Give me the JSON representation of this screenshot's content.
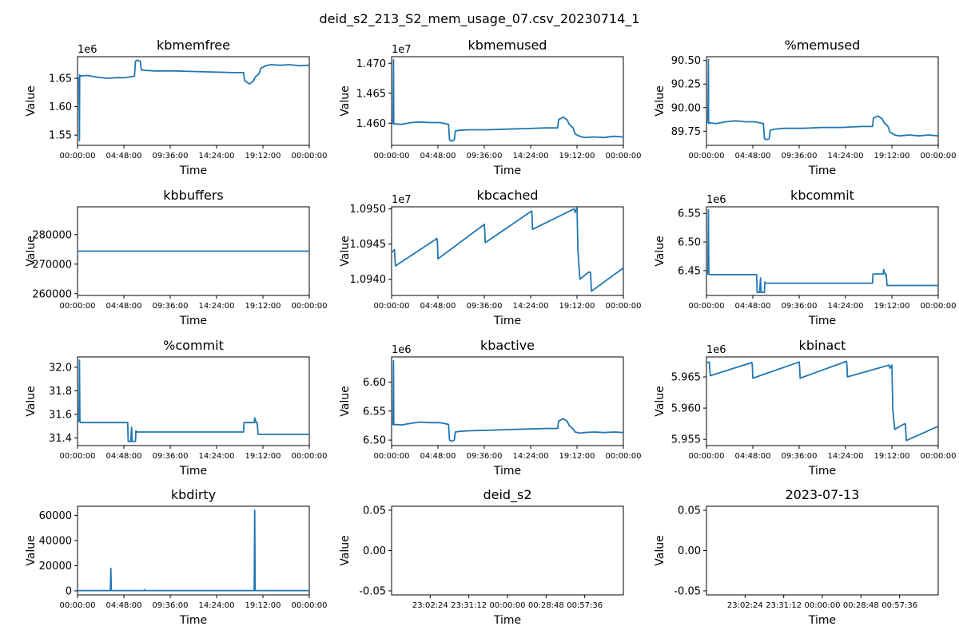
{
  "figure": {
    "suptitle": "deid_s2_213_S2_mem_usage_07.csv_20230714_1"
  },
  "chart_data": [
    {
      "type": "line",
      "title": "kbmemfree",
      "xlabel": "Time",
      "ylabel": "Value",
      "offset_text": "1e6",
      "xlim": [
        0,
        24
      ],
      "ylim": [
        1.532,
        1.688
      ],
      "yticks": [
        1.55,
        1.6,
        1.65
      ],
      "ytick_labels": [
        "1.55",
        "1.60",
        "1.65"
      ],
      "xticks": [
        0,
        4.8,
        9.6,
        14.4,
        19.2,
        24
      ],
      "xtick_labels": [
        "00:00:00",
        "04:48:00",
        "09:36:00",
        "14:24:00",
        "19:12:00",
        "00:00:00"
      ],
      "series": [
        {
          "x": [
            0,
            0.15,
            0.2,
            0.22,
            0.3,
            1,
            2,
            3,
            4,
            5,
            5.9,
            6.0,
            6.2,
            6.5,
            6.6,
            7,
            8,
            10,
            12,
            14,
            16,
            17.2,
            17.3,
            17.8,
            18.2,
            18.4,
            18.8,
            19.0,
            19.5,
            20,
            21,
            22,
            23,
            24
          ],
          "y": [
            1.652,
            1.65,
            1.54,
            1.656,
            1.654,
            1.655,
            1.652,
            1.65,
            1.651,
            1.651,
            1.654,
            1.68,
            1.682,
            1.68,
            1.665,
            1.664,
            1.663,
            1.663,
            1.662,
            1.661,
            1.66,
            1.66,
            1.646,
            1.64,
            1.645,
            1.652,
            1.658,
            1.668,
            1.672,
            1.674,
            1.673,
            1.674,
            1.672,
            1.673
          ]
        }
      ]
    },
    {
      "type": "line",
      "title": "kbmemused",
      "xlabel": "Time",
      "ylabel": "Value",
      "offset_text": "1e7",
      "xlim": [
        0,
        24
      ],
      "ylim": [
        1.4563,
        1.4711
      ],
      "yticks": [
        1.46,
        1.465,
        1.47
      ],
      "ytick_labels": [
        "1.460",
        "1.465",
        "1.470"
      ],
      "xticks": [
        0,
        4.8,
        9.6,
        14.4,
        19.2,
        24
      ],
      "xtick_labels": [
        "00:00:00",
        "04:48:00",
        "09:36:00",
        "14:24:00",
        "19:12:00",
        "00:00:00"
      ],
      "series": [
        {
          "x": [
            0,
            0.15,
            0.2,
            0.22,
            0.3,
            1,
            2,
            3,
            4,
            5,
            5.9,
            6.0,
            6.2,
            6.5,
            6.6,
            7,
            8,
            10,
            12,
            14,
            16,
            17.2,
            17.3,
            17.8,
            18.2,
            18.4,
            18.8,
            19.0,
            19.5,
            20,
            21,
            22,
            23,
            24
          ],
          "y": [
            1.46,
            1.4601,
            1.4706,
            1.4598,
            1.4599,
            1.4598,
            1.4601,
            1.4602,
            1.4601,
            1.4601,
            1.4598,
            1.4572,
            1.457,
            1.4572,
            1.4587,
            1.4588,
            1.4589,
            1.4589,
            1.459,
            1.4591,
            1.4592,
            1.4592,
            1.4606,
            1.461,
            1.4605,
            1.4598,
            1.4592,
            1.4582,
            1.4578,
            1.4576,
            1.4577,
            1.4576,
            1.4578,
            1.4577
          ]
        }
      ]
    },
    {
      "type": "line",
      "title": "%memused",
      "xlabel": "Time",
      "ylabel": "Value",
      "xlim": [
        0,
        24
      ],
      "ylim": [
        89.6,
        90.54
      ],
      "yticks": [
        89.75,
        90.0,
        90.25,
        90.5
      ],
      "ytick_labels": [
        "89.75",
        "90.00",
        "90.25",
        "90.50"
      ],
      "xticks": [
        0,
        4.8,
        9.6,
        14.4,
        19.2,
        24
      ],
      "xtick_labels": [
        "00:00:00",
        "04:48:00",
        "09:36:00",
        "14:24:00",
        "19:12:00",
        "00:00:00"
      ],
      "series": [
        {
          "x": [
            0,
            0.15,
            0.2,
            0.22,
            0.3,
            1,
            2,
            3,
            4,
            5,
            5.9,
            6.0,
            6.2,
            6.5,
            6.6,
            7,
            8,
            10,
            12,
            14,
            16,
            17.2,
            17.3,
            17.8,
            18.2,
            18.4,
            18.8,
            19.0,
            19.5,
            20,
            21,
            22,
            23,
            24
          ],
          "y": [
            89.84,
            89.85,
            90.51,
            89.83,
            89.84,
            89.83,
            89.85,
            89.86,
            89.85,
            89.85,
            89.83,
            89.67,
            89.66,
            89.67,
            89.76,
            89.77,
            89.78,
            89.78,
            89.79,
            89.79,
            89.8,
            89.8,
            89.89,
            89.91,
            89.88,
            89.84,
            89.8,
            89.74,
            89.71,
            89.7,
            89.71,
            89.7,
            89.71,
            89.7
          ]
        }
      ]
    },
    {
      "type": "line",
      "title": "kbbuffers",
      "xlabel": "Time",
      "ylabel": "Value",
      "xlim": [
        0,
        24
      ],
      "ylim": [
        259400,
        289400
      ],
      "yticks": [
        260000,
        270000,
        280000
      ],
      "ytick_labels": [
        "260000",
        "270000",
        "280000"
      ],
      "xticks": [
        0,
        4.8,
        9.6,
        14.4,
        19.2,
        24
      ],
      "xtick_labels": [
        "00:00:00",
        "04:48:00",
        "09:36:00",
        "14:24:00",
        "19:12:00",
        "00:00:00"
      ],
      "series": [
        {
          "x": [
            0,
            24
          ],
          "y": [
            274400,
            274400
          ]
        }
      ]
    },
    {
      "type": "line",
      "title": "kbcached",
      "xlabel": "Time",
      "ylabel": "Value",
      "offset_text": "1e7",
      "xlim": [
        0,
        24
      ],
      "ylim": [
        1.09377,
        1.09503
      ],
      "yticks": [
        1.094,
        1.0945,
        1.095
      ],
      "ytick_labels": [
        "1.0940",
        "1.0945",
        "1.0950"
      ],
      "xticks": [
        0,
        4.8,
        9.6,
        14.4,
        19.2,
        24
      ],
      "xtick_labels": [
        "00:00:00",
        "04:48:00",
        "09:36:00",
        "14:24:00",
        "19:12:00",
        "00:00:00"
      ],
      "series": [
        {
          "x": [
            0,
            0.3,
            0.4,
            4.7,
            4.75,
            4.8,
            9.6,
            9.65,
            9.7,
            14.5,
            14.55,
            14.6,
            18.9,
            19.0,
            19.2,
            19.3,
            19.5,
            20.4,
            20.6,
            20.7,
            24
          ],
          "y": [
            1.09438,
            1.09442,
            1.09419,
            1.09458,
            1.09452,
            1.09429,
            1.09478,
            1.09468,
            1.09452,
            1.09497,
            1.0949,
            1.09471,
            1.095,
            1.09495,
            1.09502,
            1.0944,
            1.094,
            1.0941,
            1.0941,
            1.09383,
            1.09416
          ]
        }
      ]
    },
    {
      "type": "line",
      "title": "kbcommit",
      "xlabel": "Time",
      "ylabel": "Value",
      "offset_text": "1e6",
      "xlim": [
        0,
        24
      ],
      "ylim": [
        6.4065,
        6.5615
      ],
      "yticks": [
        6.45,
        6.5,
        6.55
      ],
      "ytick_labels": [
        "6.45",
        "6.50",
        "6.55"
      ],
      "xticks": [
        0,
        4.8,
        9.6,
        14.4,
        19.2,
        24
      ],
      "xtick_labels": [
        "00:00:00",
        "04:48:00",
        "09:36:00",
        "14:24:00",
        "19:12:00",
        "00:00:00"
      ],
      "series": [
        {
          "x": [
            0,
            0.15,
            0.2,
            0.25,
            0.3,
            1,
            3,
            5.2,
            5.25,
            5.5,
            5.6,
            5.65,
            6.0,
            6.05,
            6.1,
            6.2,
            7,
            8,
            10,
            12,
            14,
            16,
            17.2,
            17.25,
            18.3,
            18.35,
            18.5,
            18.6,
            18.7,
            20,
            22,
            24
          ],
          "y": [
            6.444,
            6.444,
            6.556,
            6.444,
            6.443,
            6.443,
            6.443,
            6.443,
            6.412,
            6.412,
            6.437,
            6.412,
            6.412,
            6.43,
            6.428,
            6.428,
            6.428,
            6.428,
            6.428,
            6.428,
            6.428,
            6.428,
            6.428,
            6.444,
            6.444,
            6.452,
            6.444,
            6.444,
            6.424,
            6.424,
            6.424,
            6.424
          ]
        }
      ]
    },
    {
      "type": "line",
      "title": "%commit",
      "xlabel": "Time",
      "ylabel": "Value",
      "xlim": [
        0,
        24
      ],
      "ylim": [
        31.335,
        32.087
      ],
      "yticks": [
        31.4,
        31.6,
        31.8,
        32.0
      ],
      "ytick_labels": [
        "31.4",
        "31.6",
        "31.8",
        "32.0"
      ],
      "xticks": [
        0,
        4.8,
        9.6,
        14.4,
        19.2,
        24
      ],
      "xtick_labels": [
        "00:00:00",
        "04:48:00",
        "09:36:00",
        "14:24:00",
        "19:12:00",
        "00:00:00"
      ],
      "series": [
        {
          "x": [
            0,
            0.15,
            0.2,
            0.25,
            0.3,
            1,
            3,
            5.2,
            5.25,
            5.5,
            5.6,
            5.65,
            6.0,
            6.05,
            6.1,
            6.2,
            7,
            8,
            10,
            12,
            14,
            16,
            17.2,
            17.25,
            18.3,
            18.35,
            18.5,
            18.6,
            18.7,
            20,
            22,
            24
          ],
          "y": [
            31.54,
            31.54,
            32.06,
            31.54,
            31.53,
            31.53,
            31.53,
            31.53,
            31.37,
            31.37,
            31.49,
            31.37,
            31.37,
            31.46,
            31.45,
            31.45,
            31.45,
            31.45,
            31.45,
            31.45,
            31.45,
            31.45,
            31.45,
            31.53,
            31.53,
            31.57,
            31.53,
            31.53,
            31.43,
            31.43,
            31.43,
            31.43
          ]
        }
      ]
    },
    {
      "type": "line",
      "title": "kbactive",
      "xlabel": "Time",
      "ylabel": "Value",
      "offset_text": "1e6",
      "xlim": [
        0,
        24
      ],
      "ylim": [
        6.4905,
        6.6435
      ],
      "yticks": [
        6.5,
        6.55,
        6.6
      ],
      "ytick_labels": [
        "6.50",
        "6.55",
        "6.60"
      ],
      "xticks": [
        0,
        4.8,
        9.6,
        14.4,
        19.2,
        24
      ],
      "xtick_labels": [
        "00:00:00",
        "04:48:00",
        "09:36:00",
        "14:24:00",
        "19:12:00",
        "00:00:00"
      ],
      "series": [
        {
          "x": [
            0,
            0.15,
            0.2,
            0.22,
            0.3,
            1,
            2,
            3,
            4,
            5,
            5.9,
            6.0,
            6.2,
            6.5,
            6.6,
            7,
            8,
            10,
            12,
            14,
            16,
            17.2,
            17.3,
            17.8,
            18.2,
            18.4,
            18.8,
            19.0,
            19.5,
            20,
            21,
            22,
            23,
            24
          ],
          "y": [
            6.527,
            6.528,
            6.637,
            6.526,
            6.527,
            6.526,
            6.529,
            6.531,
            6.53,
            6.53,
            6.527,
            6.5,
            6.498,
            6.5,
            6.514,
            6.515,
            6.516,
            6.517,
            6.518,
            6.519,
            6.52,
            6.52,
            6.533,
            6.537,
            6.532,
            6.525,
            6.519,
            6.514,
            6.512,
            6.513,
            6.514,
            6.513,
            6.514,
            6.513
          ]
        }
      ]
    },
    {
      "type": "line",
      "title": "kbinact",
      "xlabel": "Time",
      "ylabel": "Value",
      "offset_text": "1e6",
      "xlim": [
        0,
        24
      ],
      "ylim": [
        5.954,
        5.9682
      ],
      "yticks": [
        5.955,
        5.96,
        5.965
      ],
      "ytick_labels": [
        "5.955",
        "5.960",
        "5.965"
      ],
      "xticks": [
        0,
        4.8,
        9.6,
        14.4,
        19.2,
        24
      ],
      "xtick_labels": [
        "00:00:00",
        "04:48:00",
        "09:36:00",
        "14:24:00",
        "19:12:00",
        "00:00:00"
      ],
      "series": [
        {
          "x": [
            0,
            0.3,
            0.4,
            4.7,
            4.75,
            4.8,
            9.6,
            9.65,
            9.7,
            14.5,
            14.55,
            14.6,
            18.9,
            19.0,
            19.2,
            19.3,
            19.5,
            20.4,
            20.6,
            20.7,
            24
          ],
          "y": [
            5.9672,
            5.9674,
            5.9652,
            5.9673,
            5.9668,
            5.9648,
            5.9674,
            5.9665,
            5.9648,
            5.9675,
            5.9668,
            5.965,
            5.9669,
            5.9664,
            5.9669,
            5.9597,
            5.9566,
            5.9574,
            5.9575,
            5.9548,
            5.9571
          ]
        }
      ]
    },
    {
      "type": "line",
      "title": "kbdirty",
      "xlabel": "Time",
      "ylabel": "Value",
      "xlim": [
        0,
        24
      ],
      "ylim": [
        -3200,
        67200
      ],
      "yticks": [
        0,
        20000,
        40000,
        60000
      ],
      "ytick_labels": [
        "0",
        "20000",
        "40000",
        "60000"
      ],
      "xticks": [
        0,
        4.8,
        9.6,
        14.4,
        19.2,
        24
      ],
      "xtick_labels": [
        "00:00:00",
        "04:48:00",
        "09:36:00",
        "14:24:00",
        "19:12:00",
        "00:00:00"
      ],
      "series": [
        {
          "x": [
            0,
            3.4,
            3.45,
            3.5,
            6.9,
            6.95,
            7.0,
            18.3,
            18.35,
            18.4,
            24
          ],
          "y": [
            200,
            200,
            18000,
            200,
            200,
            900,
            200,
            200,
            64000,
            200,
            200
          ]
        }
      ]
    },
    {
      "type": "line",
      "title": "deid_s2",
      "xlabel": "Time",
      "ylabel": "Value",
      "xlim": [
        0,
        6
      ],
      "ylim": [
        -0.055,
        0.055
      ],
      "yticks": [
        -0.05,
        0.0,
        0.05
      ],
      "ytick_labels": [
        "-0.05",
        "0.00",
        "0.05"
      ],
      "xticks": [
        1,
        2,
        3,
        4,
        5
      ],
      "xtick_labels": [
        "23:02:24",
        "23:31:12",
        "00:00:00",
        "00:28:48",
        "00:57:36"
      ],
      "series": []
    },
    {
      "type": "line",
      "title": "2023-07-13",
      "xlabel": "Time",
      "ylabel": "Value",
      "xlim": [
        0,
        6
      ],
      "ylim": [
        -0.055,
        0.055
      ],
      "yticks": [
        -0.05,
        0.0,
        0.05
      ],
      "ytick_labels": [
        "-0.05",
        "0.00",
        "0.05"
      ],
      "xticks": [
        1,
        2,
        3,
        4,
        5
      ],
      "xtick_labels": [
        "23:02:24",
        "23:31:12",
        "00:00:00",
        "00:28:48",
        "00:57:36"
      ],
      "series": []
    }
  ],
  "style": {
    "line_color": "#1f77b4",
    "axis_color": "#000000",
    "background": "#ffffff"
  }
}
